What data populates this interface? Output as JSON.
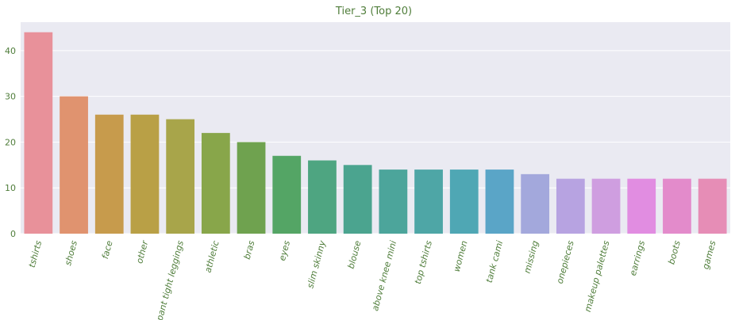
{
  "chart_data": {
    "type": "bar",
    "title": "Tier_3 (Top 20)",
    "xlabel": "",
    "ylabel": "",
    "categories": [
      "tshirts",
      "shoes",
      "face",
      "other",
      "pant tight leggings",
      "athletic",
      "bras",
      "eyes",
      "slim skinny",
      "blouse",
      "above knee mini",
      "top tshirts",
      "women",
      "tank cami",
      "missing",
      "onepieces",
      "makeup palettes",
      "earrings",
      "boots",
      "games"
    ],
    "values": [
      44,
      30,
      26,
      26,
      25,
      22,
      20,
      17,
      16,
      15,
      14,
      14,
      14,
      14,
      13,
      12,
      12,
      12,
      12,
      12
    ],
    "colors": [
      "#e8919a",
      "#e0936f",
      "#c79b4c",
      "#b9a046",
      "#a8a54a",
      "#88a64a",
      "#6fa24f",
      "#54a565",
      "#4ea581",
      "#4ba48f",
      "#4ca59b",
      "#4ea6a6",
      "#4fa7b4",
      "#5aa5c7",
      "#a3a8dc",
      "#b7a3e1",
      "#cf9ee0",
      "#e18de1",
      "#e38bcb",
      "#e68db6"
    ],
    "yticks": [
      0,
      10,
      20,
      30,
      40
    ],
    "ylim": [
      0,
      46.2
    ],
    "grid": true,
    "legend": "none",
    "background": "#eaeaf2",
    "text_color": "#4f7d3a"
  }
}
